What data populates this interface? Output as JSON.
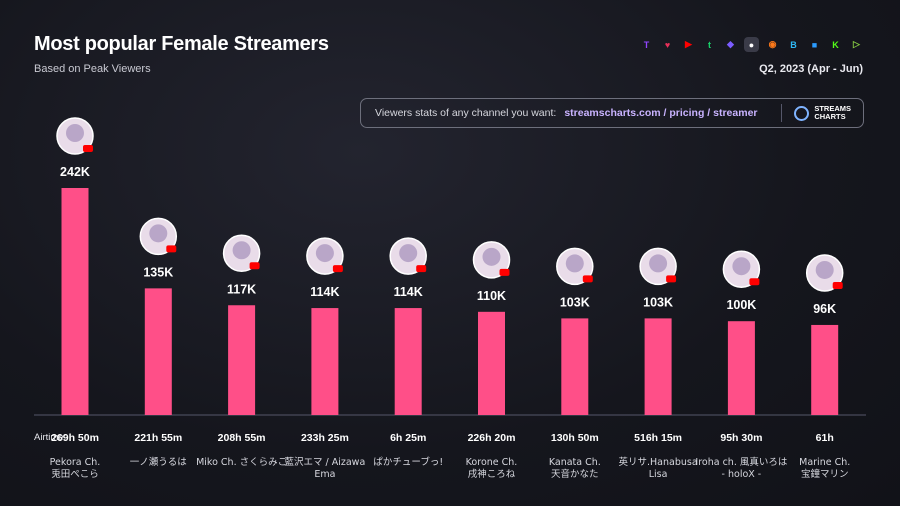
{
  "header": {
    "title": "Most popular Female Streamers",
    "subtitle": "Based on Peak Viewers",
    "period": "Q2, 2023 (Apr - Jun)"
  },
  "banner": {
    "text": "Viewers stats of any channel you want:",
    "url": "streamscharts.com / pricing / streamer",
    "logo_line1": "STREAMS",
    "logo_line2": "CHARTS"
  },
  "platforms": [
    {
      "icon": "twitch-icon",
      "color": "#9146ff",
      "glyph": "T"
    },
    {
      "icon": "nimo-icon",
      "color": "#e8305a",
      "glyph": "♥"
    },
    {
      "icon": "youtube-icon",
      "color": "#ff0000",
      "glyph": "▶"
    },
    {
      "icon": "trovo-icon",
      "color": "#19d66b",
      "glyph": "t"
    },
    {
      "icon": "kick-alt-icon",
      "color": "#7b5cff",
      "glyph": "◆"
    },
    {
      "icon": "ghost-icon",
      "color": "#ffffff",
      "glyph": "●"
    },
    {
      "icon": "afreeca-icon",
      "color": "#ff7a1a",
      "glyph": "◉"
    },
    {
      "icon": "bigo-icon",
      "color": "#2fb9f5",
      "glyph": "B"
    },
    {
      "icon": "chat-icon",
      "color": "#2b9cff",
      "glyph": "■"
    },
    {
      "icon": "kick-icon",
      "color": "#53fc18",
      "glyph": "K"
    },
    {
      "icon": "rumble-icon",
      "color": "#85c742",
      "glyph": "▷"
    }
  ],
  "airtime_label": "Airtime:",
  "chart_data": {
    "type": "bar",
    "title": "Most popular Female Streamers",
    "ylabel": "Peak Viewers",
    "ylim": [
      0,
      250000
    ],
    "bar_color": "#ff4f88",
    "categories": [
      "Pekora Ch. 兎田ぺこら",
      "一ノ瀬うるは",
      "Miko Ch. さくらみこ",
      "藍沢エマ / Aizawa Ema",
      "ぱかチューブっ!",
      "Korone Ch. 戌神ころね",
      "Kanata Ch. 天音かなた",
      "英リサ.Hanabusa Lisa",
      "Iroha ch. 風真いろは - holoX -",
      "Marine Ch. 宝鐘マリン"
    ],
    "values": [
      242000,
      135000,
      117000,
      114000,
      114000,
      110000,
      103000,
      103000,
      100000,
      96000
    ],
    "value_labels": [
      "242K",
      "135K",
      "117K",
      "114K",
      "114K",
      "110K",
      "103K",
      "103K",
      "100K",
      "96K"
    ],
    "airtime": [
      "269h 50m",
      "221h 55m",
      "208h 55m",
      "233h 25m",
      "6h 25m",
      "226h 20m",
      "130h 50m",
      "516h 15m",
      "95h 30m",
      "61h"
    ],
    "platform": [
      "youtube",
      "youtube",
      "youtube",
      "youtube",
      "youtube",
      "youtube",
      "youtube",
      "youtube",
      "youtube",
      "youtube"
    ]
  }
}
